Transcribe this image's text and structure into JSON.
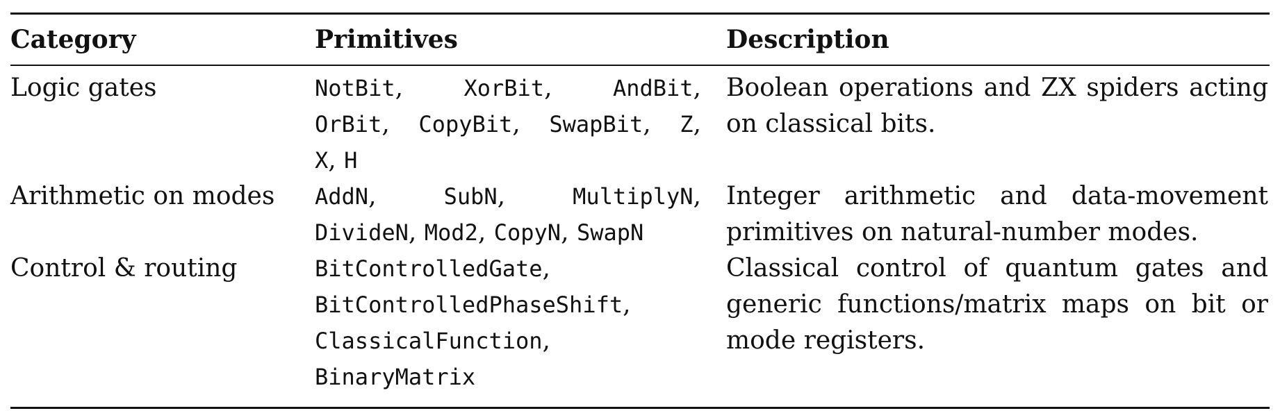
{
  "table": {
    "headers": {
      "category": "Category",
      "primitives": "Primitives",
      "description": "Description"
    },
    "rows": [
      {
        "category": "Logic gates",
        "primitives": [
          "NotBit",
          "XorBit",
          "AndBit",
          "OrBit",
          "CopyBit",
          "SwapBit",
          "Z",
          "X",
          "H"
        ],
        "description_lines": [
          "Boolean operations and ZX spiders acting",
          "on classical bits."
        ]
      },
      {
        "category": "Arithmetic on modes",
        "primitives": [
          "AddN",
          "SubN",
          "MultiplyN",
          "DivideN",
          "Mod2",
          "CopyN",
          "SwapN"
        ],
        "description_lines": [
          "Integer arithmetic and data-movement",
          "primitives on natural-number modes."
        ]
      },
      {
        "category": "Control & routing",
        "primitives": [
          "BitControlledGate",
          "BitControlledPhaseShift",
          "ClassicalFunction",
          "BinaryMatrix"
        ],
        "description_lines": [
          "Classical control of quantum gates and",
          "generic functions/matrix maps on bit or",
          "mode registers."
        ]
      }
    ],
    "separator": ","
  }
}
